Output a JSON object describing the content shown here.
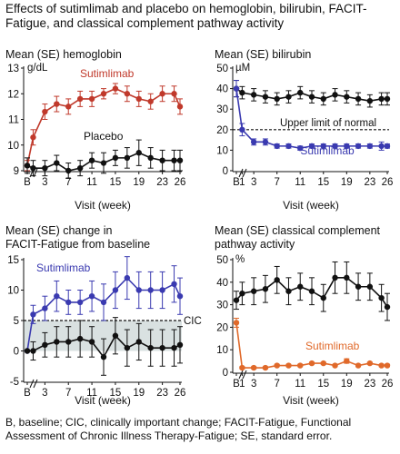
{
  "figure_title": "Effects of sutimlimab and placebo on hemoglobin, bilirubin, FACIT-Fatigue, and classical complement pathway activity",
  "footnote": "B, baseline; CIC, clinically important change; FACIT-Fatigue, Functional Assessment of Chronic Illness Therapy-Fatigue; SE, standard error.",
  "colors": {
    "sutimlimab_red": "#c0392b",
    "sutimlimab_blue": "#3a3ab0",
    "sutimlimab_orange": "#e0692a",
    "placebo": "#111111",
    "cic_band": "#d9e1e1"
  },
  "chart_data": [
    {
      "id": "hemoglobin",
      "type": "line",
      "title": "Mean (SE) hemoglobin",
      "unit": "g/dL",
      "xlabel": "Visit (week)",
      "x_ticks": [
        "B",
        "3",
        "7",
        "11",
        "15",
        "19",
        "23",
        "26"
      ],
      "x": [
        0,
        1,
        3,
        5,
        7,
        9,
        11,
        13,
        15,
        17,
        19,
        21,
        23,
        25,
        26
      ],
      "ylim": [
        9,
        13
      ],
      "y_ticks": [
        9,
        10,
        11,
        12,
        13
      ],
      "series": [
        {
          "name": "Sutimlimab",
          "color": "#c0392b",
          "values": [
            9.2,
            10.3,
            11.3,
            11.6,
            11.5,
            11.8,
            11.8,
            12.0,
            12.2,
            12.0,
            11.8,
            11.7,
            12.0,
            12.0,
            11.5
          ],
          "se": [
            0.2,
            0.3,
            0.3,
            0.3,
            0.3,
            0.3,
            0.3,
            0.2,
            0.2,
            0.3,
            0.3,
            0.3,
            0.3,
            0.3,
            0.3
          ]
        },
        {
          "name": "Placebo",
          "color": "#111111",
          "values": [
            9.2,
            9.1,
            9.1,
            9.3,
            9.0,
            9.1,
            9.4,
            9.3,
            9.5,
            9.5,
            9.7,
            9.5,
            9.4,
            9.4,
            9.4
          ],
          "se": [
            0.3,
            0.3,
            0.3,
            0.3,
            0.3,
            0.3,
            0.3,
            0.4,
            0.3,
            0.4,
            0.5,
            0.4,
            0.4,
            0.4,
            0.4
          ]
        }
      ]
    },
    {
      "id": "bilirubin",
      "type": "line",
      "title": "Mean (SE) bilirubin",
      "unit": "µM",
      "xlabel": "Visit (week)",
      "x_ticks": [
        "B",
        "1",
        "3",
        "7",
        "11",
        "15",
        "19",
        "23",
        "26"
      ],
      "x": [
        0,
        1,
        3,
        5,
        7,
        9,
        11,
        13,
        15,
        17,
        19,
        21,
        23,
        25,
        26
      ],
      "ylim": [
        0,
        50
      ],
      "y_ticks": [
        0,
        10,
        20,
        30,
        40,
        50
      ],
      "reference_line": {
        "value": 20,
        "label": "Upper limit of normal"
      },
      "series": [
        {
          "name": "Placebo",
          "color": "#111111",
          "values": [
            40,
            38,
            37,
            36,
            35,
            36,
            38,
            36,
            35,
            37,
            36,
            35,
            34,
            35,
            35
          ],
          "se": [
            4,
            3,
            3,
            3,
            3,
            3,
            3,
            3,
            3,
            3,
            3,
            3,
            3,
            3,
            3
          ]
        },
        {
          "name": "Sutimlimab",
          "color": "#3a3ab0",
          "values": [
            40,
            20,
            14,
            14,
            12,
            12,
            11,
            12,
            12,
            12,
            12,
            12,
            12,
            12,
            12
          ],
          "se": [
            4,
            3,
            1.5,
            1.5,
            1,
            1,
            1,
            1,
            1,
            1,
            1,
            1,
            1,
            2,
            1
          ]
        }
      ]
    },
    {
      "id": "facit",
      "type": "line",
      "title": "Mean (SE) change in FACIT-Fatigue from baseline",
      "xlabel": "Visit (week)",
      "x_ticks": [
        "B",
        "3",
        "7",
        "11",
        "15",
        "19",
        "23",
        "26"
      ],
      "x": [
        0,
        1,
        3,
        5,
        7,
        9,
        11,
        13,
        15,
        17,
        19,
        21,
        23,
        25,
        26
      ],
      "ylim": [
        -5,
        15
      ],
      "y_ticks": [
        -5,
        0,
        5,
        10,
        15
      ],
      "cic": {
        "value": 5,
        "label": "CIC",
        "band": [
          0,
          5
        ]
      },
      "series": [
        {
          "name": "Sutimlimab",
          "color": "#3a3ab0",
          "values": [
            0,
            6,
            7,
            9,
            8,
            8,
            9,
            8,
            10,
            12,
            10,
            10,
            10,
            11,
            9
          ],
          "se": [
            0,
            1.5,
            2,
            2.5,
            2,
            2,
            2.5,
            3,
            3,
            3.5,
            3,
            3,
            3,
            3,
            3
          ]
        },
        {
          "name": "Placebo",
          "color": "#111111",
          "values": [
            0,
            0,
            1,
            1.5,
            1.5,
            2,
            1.5,
            -1,
            2.5,
            0.5,
            1.5,
            0.5,
            0.5,
            0.5,
            1
          ],
          "se": [
            0,
            1.5,
            2,
            2.5,
            2.5,
            3,
            2.5,
            3,
            3,
            3,
            3,
            3,
            3,
            3,
            3
          ]
        }
      ]
    },
    {
      "id": "complement",
      "type": "line",
      "title": "Mean (SE) classical complement pathway activity",
      "unit": "%",
      "xlabel": "Visit (week)",
      "x_ticks": [
        "B",
        "1",
        "3",
        "7",
        "11",
        "15",
        "19",
        "23",
        "26"
      ],
      "x": [
        0,
        1,
        3,
        5,
        7,
        9,
        11,
        13,
        15,
        17,
        19,
        21,
        23,
        25,
        26
      ],
      "ylim": [
        0,
        50
      ],
      "y_ticks": [
        0,
        10,
        20,
        30,
        40,
        50
      ],
      "series": [
        {
          "name": "Placebo",
          "color": "#111111",
          "values": [
            32,
            35,
            36,
            37,
            41,
            36,
            38,
            36,
            33,
            42,
            42,
            38,
            38,
            33,
            29
          ],
          "se": [
            4,
            5,
            6,
            6,
            6,
            6,
            6,
            6,
            6,
            7,
            7,
            6,
            6,
            6,
            6
          ]
        },
        {
          "name": "Sutimlimab",
          "color": "#e0692a",
          "values": [
            22,
            2,
            2,
            2,
            3,
            3,
            3,
            4,
            4,
            3,
            5,
            3,
            4,
            3,
            3
          ],
          "se": [
            2,
            0.5,
            0.5,
            0.5,
            0.5,
            0.5,
            0.5,
            0.5,
            0.5,
            0.5,
            1,
            0.5,
            0.5,
            0.5,
            0.5
          ]
        }
      ]
    }
  ]
}
